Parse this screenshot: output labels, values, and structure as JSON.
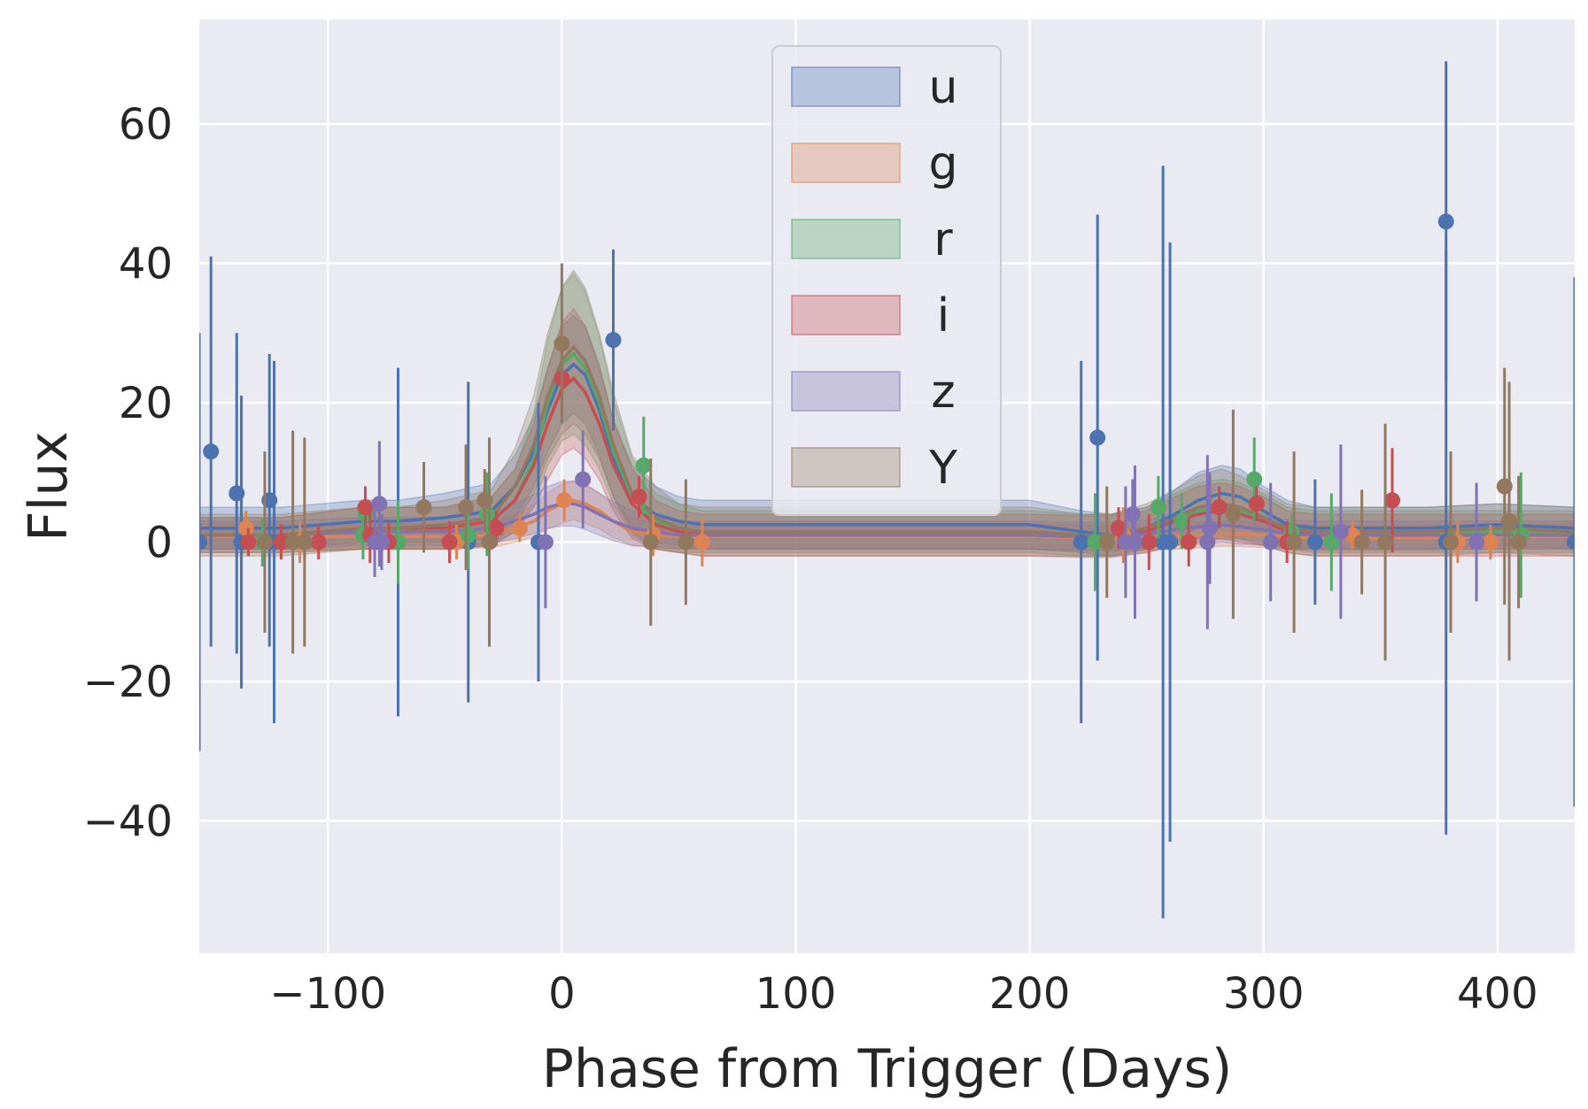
{
  "chart_data": {
    "type": "line",
    "xlabel": "Phase from Trigger (Days)",
    "ylabel": "Flux",
    "xlim": [
      -155,
      433
    ],
    "ylim": [
      -59,
      75
    ],
    "xticks": [
      -100,
      0,
      100,
      200,
      300,
      400
    ],
    "xtick_labels": [
      "−100",
      "0",
      "100",
      "200",
      "300",
      "400"
    ],
    "yticks": [
      -40,
      -20,
      0,
      20,
      40,
      60
    ],
    "ytick_labels": [
      "−40",
      "−20",
      "0",
      "20",
      "40",
      "60"
    ],
    "grid": true,
    "legend_position": "top-center",
    "background": "#eaeaf2",
    "model_x": [
      -155,
      -120,
      -85,
      -70,
      -50,
      -30,
      -20,
      -12,
      -6,
      0,
      5,
      10,
      16,
      22,
      30,
      40,
      50,
      60,
      75,
      100,
      150,
      200,
      222,
      235,
      250,
      262,
      272,
      282,
      290,
      300,
      310,
      322,
      340,
      370,
      400,
      433
    ],
    "series": [
      {
        "name": "u",
        "color": "#4c72b0",
        "model": [
          2,
          2,
          3,
          3,
          3.5,
          4.5,
          8,
          13,
          19,
          24,
          25.5,
          24,
          19,
          12,
          6.5,
          4,
          3,
          2.5,
          2.5,
          2.5,
          2.5,
          2.5,
          1.5,
          1,
          2,
          4,
          6,
          7,
          6.5,
          4.5,
          2.5,
          2,
          2,
          2,
          2.5,
          2
        ],
        "band": [
          3,
          3,
          3,
          3,
          3.5,
          4,
          4.5,
          5,
          6,
          7,
          7,
          7,
          6.5,
          5.5,
          4.5,
          4,
          3.5,
          3.5,
          3.5,
          3.5,
          3.5,
          3.5,
          3,
          3,
          3,
          3.5,
          4,
          4,
          4,
          3.5,
          3.5,
          3,
          3,
          3,
          3,
          3
        ],
        "points": [
          {
            "x": -155,
            "y": 0,
            "err": 30
          },
          {
            "x": -150,
            "y": 13,
            "err": 28
          },
          {
            "x": -139,
            "y": 7,
            "err": 23
          },
          {
            "x": -137,
            "y": 0,
            "err": 21
          },
          {
            "x": -125,
            "y": 6,
            "err": 21
          },
          {
            "x": -123,
            "y": 0,
            "err": 26
          },
          {
            "x": -70,
            "y": 0,
            "err": 25
          },
          {
            "x": -40,
            "y": 0,
            "err": 23
          },
          {
            "x": -10,
            "y": 0,
            "err": 20
          },
          {
            "x": 22,
            "y": 29,
            "err": 13
          },
          {
            "x": 222,
            "y": 0,
            "err": 26
          },
          {
            "x": 229,
            "y": 15,
            "err": 32
          },
          {
            "x": 257,
            "y": 0,
            "err": 54
          },
          {
            "x": 260,
            "y": 0,
            "err": 43
          },
          {
            "x": 322,
            "y": 0,
            "err": 9
          },
          {
            "x": 378,
            "y": 46,
            "err": 23
          },
          {
            "x": 378,
            "y": 0,
            "err": 42
          },
          {
            "x": 433,
            "y": 0,
            "err": 38
          }
        ]
      },
      {
        "name": "g",
        "color": "#dd8452",
        "model": [
          0.8,
          0.8,
          0.8,
          0.8,
          0.8,
          1,
          2,
          3,
          4.5,
          5.5,
          6,
          5.5,
          4.5,
          3,
          1.5,
          1,
          0.8,
          0.8,
          0.8,
          0.8,
          0.8,
          0.8,
          0.6,
          0.5,
          0.6,
          0.8,
          1,
          1.2,
          1.2,
          1,
          0.8,
          0.6,
          0.6,
          0.6,
          0.8,
          0.8
        ],
        "band": [
          1.8,
          1.8,
          1.8,
          1.8,
          1.8,
          1.8,
          2,
          2.3,
          2.6,
          2.8,
          2.8,
          2.8,
          2.6,
          2.3,
          2,
          1.8,
          1.8,
          1.8,
          1.8,
          1.8,
          1.8,
          1.8,
          1.8,
          1.8,
          1.8,
          1.8,
          1.8,
          1.8,
          1.8,
          1.8,
          1.8,
          1.8,
          1.8,
          1.8,
          1.8,
          1.8
        ],
        "points": [
          {
            "x": -135,
            "y": 2,
            "err": 2.5
          },
          {
            "x": -112,
            "y": 0,
            "err": 3
          },
          {
            "x": -48,
            "y": 0,
            "err": 3
          },
          {
            "x": -45,
            "y": 0,
            "err": 2.5
          },
          {
            "x": -18,
            "y": 2,
            "err": 2
          },
          {
            "x": 1,
            "y": 6,
            "err": 3
          },
          {
            "x": 39,
            "y": 1,
            "err": 3
          },
          {
            "x": 60,
            "y": 0,
            "err": 3.5
          },
          {
            "x": 240,
            "y": 1,
            "err": 4
          },
          {
            "x": 287,
            "y": 4,
            "err": 5
          },
          {
            "x": 338,
            "y": 1,
            "err": 2
          },
          {
            "x": 383,
            "y": 0,
            "err": 3
          },
          {
            "x": 397,
            "y": 0,
            "err": 2.5
          }
        ]
      },
      {
        "name": "r",
        "color": "#55a868",
        "model": [
          1,
          1,
          2,
          2,
          2,
          3,
          6,
          12,
          20,
          25.5,
          27,
          25,
          20,
          13,
          6.5,
          3,
          2,
          1.5,
          1.5,
          1.5,
          1.5,
          1.5,
          1,
          1,
          2,
          3.5,
          4.5,
          5,
          4.5,
          3.5,
          2,
          1.5,
          1.5,
          1.5,
          1.5,
          1.5
        ],
        "band": [
          2.5,
          2.5,
          3,
          3,
          3,
          3.5,
          4.5,
          6.5,
          9,
          11,
          11.5,
          11,
          9.5,
          7.5,
          5.5,
          4,
          3.5,
          3,
          3,
          3,
          3,
          3,
          3,
          3,
          3,
          3.5,
          4,
          4,
          4,
          3.5,
          3,
          3,
          3,
          3,
          3,
          3
        ],
        "points": [
          {
            "x": -128,
            "y": 0,
            "err": 3.5
          },
          {
            "x": -85,
            "y": 1,
            "err": 3.5
          },
          {
            "x": -84,
            "y": 4,
            "err": 4
          },
          {
            "x": -70,
            "y": 0,
            "err": 6
          },
          {
            "x": -40,
            "y": 1,
            "err": 5
          },
          {
            "x": -32,
            "y": 4,
            "err": 6
          },
          {
            "x": 35,
            "y": 11,
            "err": 7
          },
          {
            "x": 228,
            "y": 0,
            "err": 7
          },
          {
            "x": 255,
            "y": 5,
            "err": 4.5
          },
          {
            "x": 265,
            "y": 3,
            "err": 4
          },
          {
            "x": 296,
            "y": 9,
            "err": 6
          },
          {
            "x": 312,
            "y": 1.5,
            "err": 2.5
          },
          {
            "x": 329,
            "y": 0,
            "err": 7
          },
          {
            "x": 410,
            "y": 1,
            "err": 9
          }
        ]
      },
      {
        "name": "i",
        "color": "#c44e52",
        "model": [
          1,
          1,
          2,
          2,
          2,
          3,
          6,
          11,
          17,
          22,
          23.5,
          21.5,
          17,
          11,
          5.5,
          2.5,
          1.5,
          1,
          1,
          1,
          1,
          1,
          0.8,
          0.8,
          1.5,
          3,
          4,
          4.5,
          4,
          3,
          1.5,
          1,
          1,
          1,
          1,
          1
        ],
        "band": [
          2.5,
          2.5,
          3,
          3,
          3,
          3.5,
          4.5,
          6,
          8,
          9.5,
          10,
          9.5,
          8,
          6.5,
          5,
          3.5,
          3,
          3,
          3,
          3,
          3,
          3,
          3,
          3,
          3,
          3.5,
          4,
          4,
          4,
          3.5,
          3,
          3,
          3,
          3,
          3,
          3
        ],
        "points": [
          {
            "x": -134,
            "y": 0,
            "err": 2
          },
          {
            "x": -120,
            "y": 0,
            "err": 2.5
          },
          {
            "x": -110,
            "y": 0,
            "err": 2.5
          },
          {
            "x": -104,
            "y": 0,
            "err": 2.5
          },
          {
            "x": -84,
            "y": 5,
            "err": 3
          },
          {
            "x": -82,
            "y": 1,
            "err": 4
          },
          {
            "x": -74,
            "y": 0,
            "err": 3
          },
          {
            "x": -48,
            "y": 0,
            "err": 3
          },
          {
            "x": -28,
            "y": 2,
            "err": 2.5
          },
          {
            "x": 0,
            "y": 23.5,
            "err": 5
          },
          {
            "x": 33,
            "y": 6.5,
            "err": 3
          },
          {
            "x": 238,
            "y": 2,
            "err": 3
          },
          {
            "x": 251,
            "y": 0,
            "err": 4
          },
          {
            "x": 268,
            "y": 0,
            "err": 3.5
          },
          {
            "x": 281,
            "y": 5,
            "err": 3
          },
          {
            "x": 297,
            "y": 5.5,
            "err": 2.5
          },
          {
            "x": 310,
            "y": 0,
            "err": 3
          },
          {
            "x": 355,
            "y": 6,
            "err": 7.5
          }
        ]
      },
      {
        "name": "z",
        "color": "#8172b3",
        "model": [
          1,
          1,
          1.5,
          1.5,
          1.5,
          2,
          3,
          4,
          5,
          5.5,
          5.5,
          5,
          4,
          3,
          2,
          1.5,
          1,
          1,
          1,
          1,
          1,
          1,
          0.8,
          0.8,
          1.2,
          1.8,
          2.2,
          2.5,
          2.2,
          1.8,
          1.2,
          1,
          1,
          1,
          1,
          1
        ],
        "band": [
          2,
          2,
          2,
          2,
          2,
          2.2,
          2.5,
          2.8,
          3,
          3.2,
          3.2,
          3.2,
          3,
          2.8,
          2.5,
          2.2,
          2,
          2,
          2,
          2,
          2,
          2,
          2,
          2,
          2,
          2.2,
          2.5,
          2.5,
          2.5,
          2.2,
          2,
          2,
          2,
          2,
          2,
          2
        ],
        "points": [
          {
            "x": -80,
            "y": 0,
            "err": 5
          },
          {
            "x": -78,
            "y": 5.5,
            "err": 9
          },
          {
            "x": -77,
            "y": 0,
            "err": 4
          },
          {
            "x": -7,
            "y": 0,
            "err": 9.5
          },
          {
            "x": 9,
            "y": 9,
            "err": 7
          },
          {
            "x": 241,
            "y": 0,
            "err": 8
          },
          {
            "x": 244,
            "y": 4,
            "err": 5
          },
          {
            "x": 245,
            "y": 0,
            "err": 11
          },
          {
            "x": 276,
            "y": 0,
            "err": 12.5
          },
          {
            "x": 277,
            "y": 2,
            "err": 8
          },
          {
            "x": 303,
            "y": 0,
            "err": 8.5
          },
          {
            "x": 333,
            "y": 1.5,
            "err": 12.5
          },
          {
            "x": 391,
            "y": 0,
            "err": 8.5
          }
        ]
      },
      {
        "name": "Y",
        "color": "#937860",
        "model": [
          1,
          1,
          2,
          2,
          2.5,
          3.5,
          8,
          14,
          21,
          26,
          28,
          26,
          21,
          14,
          7,
          3.5,
          2,
          1.5,
          1.5,
          1.5,
          1.5,
          1.5,
          1,
          1,
          2,
          3.5,
          5,
          5.5,
          5,
          3.5,
          2,
          1.5,
          1.5,
          1.5,
          2,
          1.5
        ],
        "band": [
          3,
          3,
          3,
          3,
          3.5,
          4,
          5.5,
          7,
          9,
          10.5,
          11,
          10.5,
          9,
          7.5,
          5.5,
          4.5,
          3.5,
          3.5,
          3.5,
          3.5,
          3.5,
          3.5,
          3,
          3,
          3.5,
          4,
          4.5,
          5,
          4.5,
          4,
          3.5,
          3.5,
          3.5,
          3.5,
          3.5,
          3.5
        ],
        "points": [
          {
            "x": -127,
            "y": 0,
            "err": 13
          },
          {
            "x": -115,
            "y": 0,
            "err": 16
          },
          {
            "x": -110,
            "y": 0,
            "err": 15
          },
          {
            "x": -59,
            "y": 5,
            "err": 6.5
          },
          {
            "x": -41,
            "y": 5,
            "err": 9
          },
          {
            "x": -33,
            "y": 6,
            "err": 4.5
          },
          {
            "x": -31,
            "y": 0,
            "err": 15
          },
          {
            "x": 0,
            "y": 28.5,
            "err": 11.5
          },
          {
            "x": 38,
            "y": 0,
            "err": 12
          },
          {
            "x": 53,
            "y": 0,
            "err": 9
          },
          {
            "x": 233,
            "y": 0,
            "err": 8
          },
          {
            "x": 287,
            "y": 4,
            "err": 15
          },
          {
            "x": 313,
            "y": 0,
            "err": 13
          },
          {
            "x": 342,
            "y": 0,
            "err": 7.5
          },
          {
            "x": 352,
            "y": 0,
            "err": 17
          },
          {
            "x": 380,
            "y": 0,
            "err": 13
          },
          {
            "x": 403,
            "y": 8,
            "err": 17
          },
          {
            "x": 405,
            "y": 3,
            "err": 20
          },
          {
            "x": 409,
            "y": 0,
            "err": 9.5
          }
        ]
      }
    ]
  }
}
